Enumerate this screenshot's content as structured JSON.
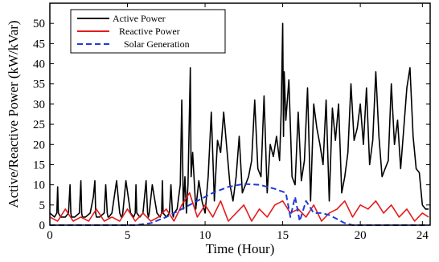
{
  "chart_data": {
    "type": "line",
    "title": "",
    "xlabel": "Time (Hour)",
    "ylabel": "Active/Reactive Power (kW/kVar)",
    "xlim": [
      0,
      24.5
    ],
    "ylim": [
      0,
      55
    ],
    "xticks": [
      0,
      5,
      10,
      15,
      20,
      24
    ],
    "yticks": [
      0,
      5,
      10,
      15,
      20,
      25,
      30,
      35,
      40,
      45,
      50
    ],
    "legend_position": "top-left",
    "grid": false,
    "series": [
      {
        "name": "Active Power",
        "color": "#000000",
        "style": "solid",
        "x": [
          0,
          0.3,
          0.45,
          0.5,
          0.55,
          0.7,
          1.0,
          1.2,
          1.3,
          1.35,
          1.4,
          1.6,
          1.9,
          2.0,
          2.05,
          2.1,
          2.3,
          2.6,
          2.8,
          2.9,
          2.95,
          3.0,
          3.2,
          3.5,
          3.6,
          3.7,
          3.75,
          3.8,
          4.0,
          4.3,
          4.5,
          4.6,
          4.65,
          4.7,
          4.9,
          5.2,
          5.4,
          5.5,
          5.55,
          5.6,
          5.8,
          6.0,
          6.2,
          6.3,
          6.35,
          6.4,
          6.6,
          6.9,
          7.1,
          7.2,
          7.25,
          7.3,
          7.5,
          7.7,
          7.8,
          7.9,
          7.95,
          8.0,
          8.2,
          8.4,
          8.5,
          8.6,
          8.7,
          8.8,
          8.9,
          9.0,
          9.05,
          9.1,
          9.2,
          9.4,
          9.6,
          9.8,
          10.0,
          10.2,
          10.4,
          10.6,
          10.8,
          11.0,
          11.2,
          11.4,
          11.6,
          11.8,
          12.0,
          12.2,
          12.4,
          12.6,
          12.8,
          13.0,
          13.2,
          13.4,
          13.6,
          13.8,
          14.0,
          14.2,
          14.4,
          14.6,
          14.8,
          14.9,
          15.0,
          15.05,
          15.1,
          15.2,
          15.4,
          15.6,
          15.8,
          16.0,
          16.2,
          16.4,
          16.6,
          16.8,
          17.0,
          17.2,
          17.4,
          17.6,
          17.8,
          18.0,
          18.2,
          18.4,
          18.6,
          18.8,
          19.0,
          19.2,
          19.4,
          19.6,
          19.8,
          20.0,
          20.2,
          20.4,
          20.6,
          20.8,
          21.0,
          21.2,
          21.4,
          21.6,
          21.8,
          22.0,
          22.2,
          22.4,
          22.6,
          22.8,
          23.0,
          23.2,
          23.4,
          23.6,
          23.8,
          24.0,
          24.2,
          24.4
        ],
        "y": [
          3,
          2,
          3,
          9.5,
          3,
          2,
          2,
          3,
          10,
          3,
          2,
          2,
          3,
          11,
          3,
          2,
          2,
          3,
          7,
          11,
          3,
          2,
          2,
          3,
          10,
          3,
          2,
          2,
          3,
          11,
          3,
          2,
          2,
          3,
          11,
          3,
          2,
          3,
          10,
          3,
          2,
          3,
          11,
          3,
          2,
          3,
          10,
          3,
          2,
          3,
          11,
          3,
          2,
          3,
          10,
          3,
          2,
          3,
          4,
          10,
          31,
          4,
          12,
          3,
          10,
          30,
          39,
          12,
          18,
          4,
          11,
          6,
          3,
          12,
          28,
          6,
          21,
          18,
          28,
          19,
          10,
          6,
          12,
          22,
          8,
          10,
          12,
          16,
          31,
          14,
          12,
          32,
          8,
          20,
          17,
          22,
          16,
          28,
          50,
          22,
          38,
          26,
          36,
          12,
          10,
          28,
          11,
          16,
          34,
          6,
          30,
          24,
          20,
          15,
          31,
          6,
          29,
          21,
          30,
          8,
          12,
          18,
          35,
          21,
          24,
          30,
          20,
          34,
          15,
          21,
          38,
          22,
          12,
          14,
          16,
          35,
          20,
          26,
          14,
          24,
          34,
          39,
          22,
          14,
          13,
          5,
          4,
          4
        ]
      },
      {
        "name": "Reactive Power",
        "color": "#e41a1c",
        "style": "solid",
        "x": [
          0,
          0.5,
          1.0,
          1.5,
          2.0,
          2.5,
          3.0,
          3.5,
          4.0,
          4.5,
          5.0,
          5.5,
          6.0,
          6.5,
          7.0,
          7.5,
          8.0,
          8.5,
          9.0,
          9.5,
          10.0,
          10.5,
          11.0,
          11.5,
          12.0,
          12.5,
          13.0,
          13.5,
          14.0,
          14.5,
          15.0,
          15.5,
          16.0,
          16.5,
          17.0,
          17.5,
          18.0,
          18.5,
          19.0,
          19.5,
          20.0,
          20.5,
          21.0,
          21.5,
          22.0,
          22.5,
          23.0,
          23.5,
          24.0,
          24.4
        ],
        "y": [
          2,
          1,
          4,
          1,
          2,
          1,
          4,
          1,
          2,
          1,
          4,
          1,
          3,
          1,
          2,
          4,
          1,
          5,
          8,
          2,
          5,
          2,
          6,
          1,
          3,
          5,
          1,
          4,
          2,
          5,
          6,
          3,
          4,
          2,
          5,
          1,
          3,
          4,
          6,
          2,
          5,
          4,
          6,
          3,
          5,
          2,
          4,
          1,
          3,
          2
        ]
      },
      {
        "name": "Solar Generation",
        "color": "#1f3bd6",
        "style": "dashed",
        "x": [
          0,
          5.5,
          6.5,
          7.5,
          8.5,
          9.5,
          10.5,
          11.5,
          12.5,
          13.5,
          14.5,
          15.2,
          15.5,
          15.8,
          16.1,
          16.5,
          17.0,
          17.5,
          18.0,
          18.5,
          19.0,
          19.5,
          24.4
        ],
        "y": [
          0,
          0,
          0.5,
          2,
          4,
          6,
          8,
          9.5,
          10.2,
          10,
          9,
          8,
          2,
          7,
          1,
          6,
          3,
          3,
          2.5,
          1.5,
          0.5,
          0,
          0
        ]
      }
    ]
  }
}
